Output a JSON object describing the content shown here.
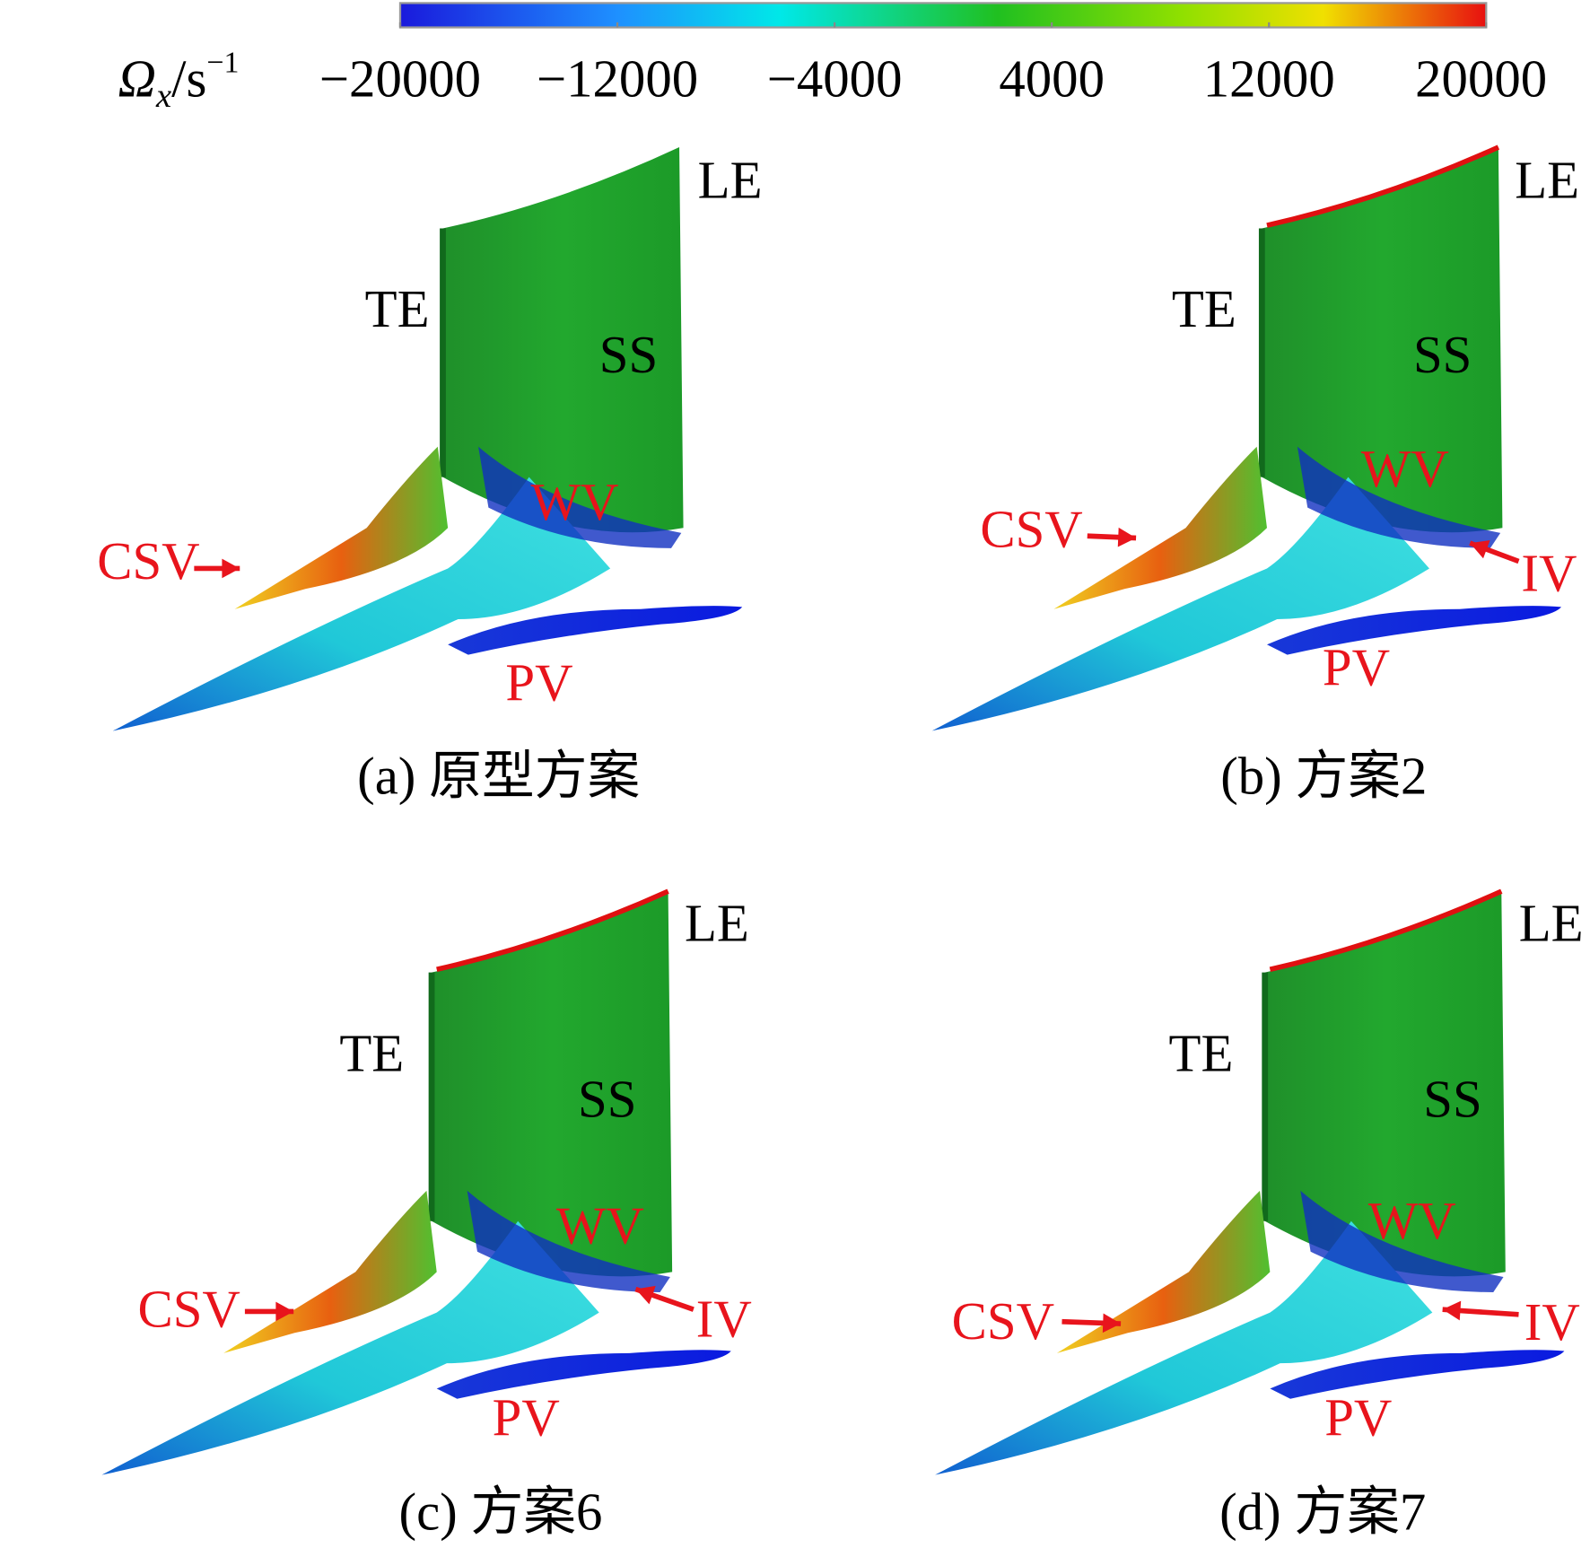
{
  "colorbar": {
    "label": {
      "symbol": "Ω",
      "subscript": "x",
      "unit": "/s",
      "superscript": "−1"
    },
    "range": [
      -20000,
      20000
    ],
    "ticks": [
      {
        "value": -20000,
        "label": "−20000"
      },
      {
        "value": -12000,
        "label": "−12000"
      },
      {
        "value": -4000,
        "label": "−4000"
      },
      4000,
      12000,
      20000
    ]
  },
  "panels": [
    {
      "labels": {
        "le": "LE",
        "te": "TE",
        "ss": "SS",
        "wv": "WV",
        "csv": "CSV",
        "pv": "PV"
      },
      "caption": "(a) 原型方案"
    },
    {
      "labels": {
        "le": "LE",
        "te": "TE",
        "ss": "SS",
        "wv": "WV",
        "csv": "CSV",
        "pv": "PV",
        "iv": "IV"
      },
      "caption": "(b) 方案2"
    },
    {
      "labels": {
        "le": "LE",
        "te": "TE",
        "ss": "SS",
        "wv": "WV",
        "csv": "CSV",
        "pv": "PV",
        "iv": "IV"
      },
      "caption": "(c) 方案6"
    },
    {
      "labels": {
        "le": "LE",
        "te": "TE",
        "ss": "SS",
        "wv": "WV",
        "csv": "CSV",
        "pv": "PV",
        "iv": "IV"
      },
      "caption": "(d) 方案7"
    }
  ]
}
